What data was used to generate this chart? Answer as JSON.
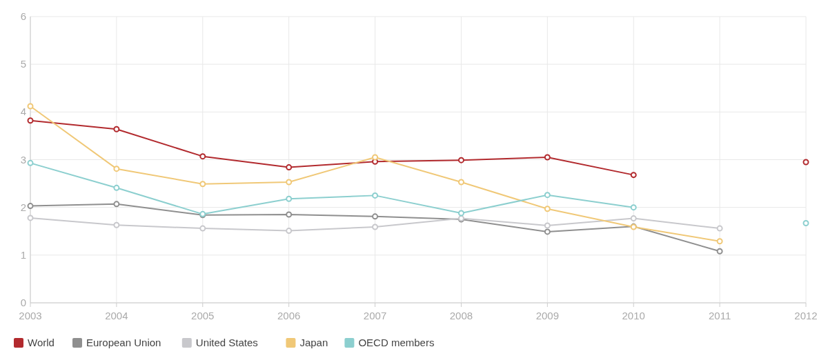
{
  "chart_data": {
    "type": "line",
    "x": [
      2003,
      2004,
      2005,
      2006,
      2007,
      2008,
      2009,
      2010,
      2011,
      2012
    ],
    "xlim": [
      2003,
      2012
    ],
    "xticks": [
      2003,
      2004,
      2005,
      2006,
      2007,
      2008,
      2009,
      2010,
      2011,
      2012
    ],
    "ylim": [
      0,
      6
    ],
    "yticks": [
      0,
      1,
      2,
      3,
      4,
      5,
      6
    ],
    "grid": true,
    "legend": "bottom left",
    "marker": "circle",
    "line_style": "solid",
    "series": [
      {
        "name": "World",
        "color": "#b22a2e",
        "values": [
          3.82,
          3.64,
          3.07,
          2.84,
          2.96,
          2.99,
          3.05,
          2.68,
          null,
          2.95
        ]
      },
      {
        "name": "European Union",
        "color": "#8f8f8f",
        "values": [
          2.03,
          2.07,
          1.84,
          1.85,
          1.81,
          1.75,
          1.49,
          1.6,
          1.08,
          null
        ]
      },
      {
        "name": "United States",
        "color": "#c8c8cc",
        "values": [
          1.78,
          1.63,
          1.56,
          1.51,
          1.59,
          1.77,
          1.62,
          1.77,
          1.56,
          null
        ]
      },
      {
        "name": "Japan",
        "color": "#f0c877",
        "values": [
          4.12,
          2.81,
          2.49,
          2.53,
          3.05,
          2.53,
          1.97,
          1.59,
          1.29,
          null
        ]
      },
      {
        "name": "OECD members",
        "color": "#8ccfcf",
        "values": [
          2.93,
          2.41,
          1.86,
          2.18,
          2.25,
          1.88,
          2.26,
          2.0,
          null,
          1.67
        ]
      }
    ]
  }
}
